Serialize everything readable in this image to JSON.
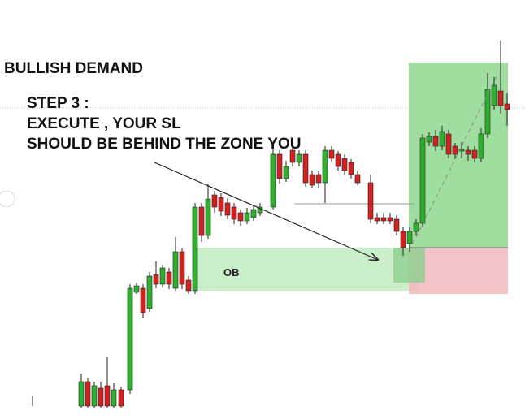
{
  "title": "BULLISH DEMAND",
  "step": [
    "STEP 3 :",
    "EXECUTE , YOUR SL",
    "SHOULD BE BEHIND THE ZONE YOU"
  ],
  "zone_label": "OB"
}
